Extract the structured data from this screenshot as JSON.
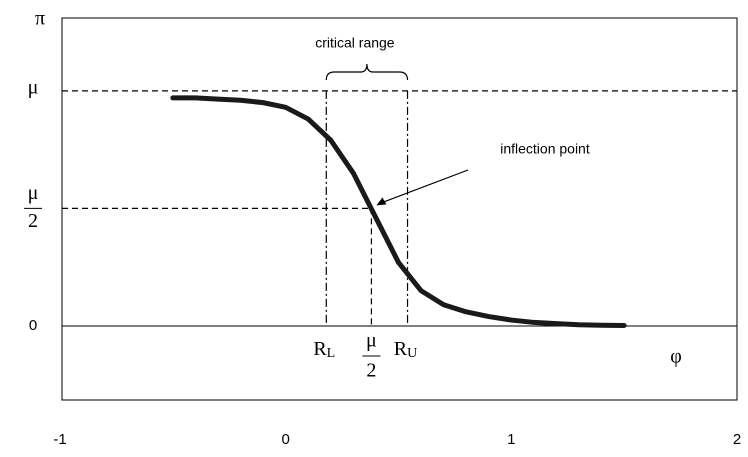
{
  "chart_data": {
    "type": "line",
    "y_label": "π",
    "x_label": "φ",
    "x": [
      -0.5,
      -0.4,
      -0.3,
      -0.2,
      -0.1,
      0,
      0.1,
      0.2,
      0.3,
      0.4,
      0.5,
      0.6,
      0.7,
      0.8,
      0.9,
      1.0,
      1.1,
      1.2,
      1.3,
      1.4,
      1.5
    ],
    "values": [
      0.97,
      0.97,
      0.965,
      0.96,
      0.95,
      0.93,
      0.88,
      0.79,
      0.65,
      0.46,
      0.27,
      0.15,
      0.09,
      0.06,
      0.04,
      0.025,
      0.015,
      0.01,
      0.005,
      0.003,
      0.002
    ],
    "color": "#1a1a1a",
    "xlim": [
      -1,
      2
    ],
    "xticks": [
      -1,
      0,
      1,
      2
    ],
    "ylim": [
      -0.315,
      1.31
    ],
    "yticks": [
      0,
      {
        "value": 0.5,
        "label": {
          "numerator": "μ",
          "denominator": "2"
        }
      },
      {
        "value": 1,
        "label": "μ"
      }
    ],
    "hlines": [
      {
        "y": 1,
        "x_end": 2
      },
      {
        "y": 0.5,
        "x_end": 0.38
      }
    ],
    "markers": [
      {
        "x": 0.18,
        "y_top": 1,
        "label": "R",
        "sub": "L",
        "style": "dash-dot"
      },
      {
        "x": 0.38,
        "y_top": 0.5,
        "numerator": "μ",
        "denominator": "2",
        "style": "dashed"
      },
      {
        "x": 0.54,
        "y_top": 1,
        "label": "R",
        "sub": "U",
        "style": "dash-dot"
      }
    ],
    "annotations": {
      "critical_range": "critical range",
      "inflection_point": "inflection point"
    }
  }
}
